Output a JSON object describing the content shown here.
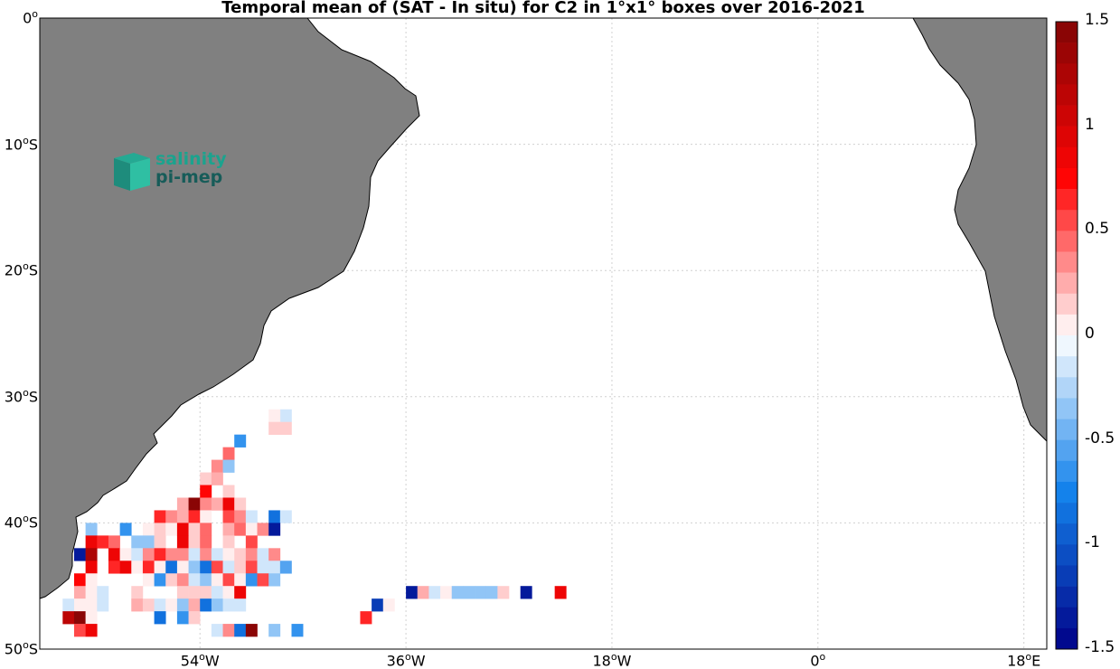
{
  "title": "Temporal mean of (SAT - In situ) for C2 in 1°x1° boxes over 2016-2021",
  "lat_ticks": [
    {
      "label": "0",
      "lat": 0
    },
    {
      "label": "10",
      "lat": -10
    },
    {
      "label": "20",
      "lat": -20
    },
    {
      "label": "30",
      "lat": -30
    },
    {
      "label": "40",
      "lat": -40
    },
    {
      "label": "50",
      "lat": -50
    }
  ],
  "lat_suffix": "S",
  "lon_ticks": [
    {
      "label": "54",
      "suffix": "W",
      "lon": -54
    },
    {
      "label": "36",
      "suffix": "W",
      "lon": -36
    },
    {
      "label": "18",
      "suffix": "W",
      "lon": -18
    },
    {
      "label": "0",
      "suffix": "",
      "lon": 0
    },
    {
      "label": "18",
      "suffix": "E",
      "lon": 18
    }
  ],
  "degree_symbol": "o",
  "logo": {
    "line1": "salinity",
    "line2": "pi-mep"
  },
  "colorbar": {
    "min": -1.5,
    "max": 1.5,
    "labels": [
      "1.5",
      "1",
      "0.5",
      "0",
      "-0.5",
      "-1",
      "-1.5"
    ],
    "label_values": [
      1.5,
      1,
      0.5,
      0,
      -0.5,
      -1,
      -1.5
    ]
  },
  "colors": {
    "land": "#808080",
    "ocean": "#ffffff",
    "grid": "#d0d0d0"
  },
  "chart_data": {
    "type": "heatmap",
    "title": "Temporal mean of (SAT - In situ) for C2 in 1°x1° boxes over 2016-2021",
    "lon_range": [
      -68,
      20
    ],
    "lat_range": [
      -50,
      0
    ],
    "cell_size_deg": 1,
    "cells": [
      {
        "lon": -47,
        "lat": -32,
        "v": -0.1
      },
      {
        "lon": -48,
        "lat": -32,
        "v": 0.05
      },
      {
        "lon": -48,
        "lat": -33,
        "v": 0.1
      },
      {
        "lon": -47,
        "lat": -33,
        "v": 0.1
      },
      {
        "lon": -51,
        "lat": -34,
        "v": -0.7
      },
      {
        "lon": -52,
        "lat": -35,
        "v": 0.4
      },
      {
        "lon": -53,
        "lat": -36,
        "v": 0.3
      },
      {
        "lon": -52,
        "lat": -36,
        "v": -0.3
      },
      {
        "lon": -54,
        "lat": -37,
        "v": 0.15
      },
      {
        "lon": -53,
        "lat": -37,
        "v": 0.2
      },
      {
        "lon": -54,
        "lat": -38,
        "v": 0.7
      },
      {
        "lon": -52,
        "lat": -38,
        "v": 0.1
      },
      {
        "lon": -56,
        "lat": -39,
        "v": 0.2
      },
      {
        "lon": -55,
        "lat": -39,
        "v": 1.5
      },
      {
        "lon": -54,
        "lat": -39,
        "v": 0.3
      },
      {
        "lon": -53,
        "lat": -39,
        "v": 0.2
      },
      {
        "lon": -52,
        "lat": -39,
        "v": 0.8
      },
      {
        "lon": -51,
        "lat": -39,
        "v": 0.1
      },
      {
        "lon": -58,
        "lat": -40,
        "v": 0.6
      },
      {
        "lon": -57,
        "lat": -40,
        "v": 0.3
      },
      {
        "lon": -56,
        "lat": -40,
        "v": 0.2
      },
      {
        "lon": -55,
        "lat": -40,
        "v": 0.6
      },
      {
        "lon": -54,
        "lat": -40,
        "v": 0.05
      },
      {
        "lon": -52,
        "lat": -40,
        "v": 0.5
      },
      {
        "lon": -51,
        "lat": -40,
        "v": 0.3
      },
      {
        "lon": -50,
        "lat": -40,
        "v": -0.15
      },
      {
        "lon": -48,
        "lat": -40,
        "v": -0.8
      },
      {
        "lon": -47,
        "lat": -40,
        "v": -0.2
      },
      {
        "lon": -64,
        "lat": -41,
        "v": -0.4
      },
      {
        "lon": -61,
        "lat": -41,
        "v": -0.7
      },
      {
        "lon": -59,
        "lat": -41,
        "v": 0.05
      },
      {
        "lon": -58,
        "lat": -41,
        "v": 0.1
      },
      {
        "lon": -57,
        "lat": -41,
        "v": 0.05
      },
      {
        "lon": -56,
        "lat": -41,
        "v": 0.8
      },
      {
        "lon": -55,
        "lat": -41,
        "v": 0.1
      },
      {
        "lon": -54,
        "lat": -41,
        "v": 0.4
      },
      {
        "lon": -52,
        "lat": -41,
        "v": 0.2
      },
      {
        "lon": -51,
        "lat": -41,
        "v": 0.4
      },
      {
        "lon": -50,
        "lat": -41,
        "v": 0.05
      },
      {
        "lon": -49,
        "lat": -41,
        "v": 0.3
      },
      {
        "lon": -48,
        "lat": -41,
        "v": -1.4
      },
      {
        "lon": -64,
        "lat": -42,
        "v": 0.8
      },
      {
        "lon": -63,
        "lat": -42,
        "v": 0.6
      },
      {
        "lon": -62,
        "lat": -42,
        "v": 0.4
      },
      {
        "lon": -60,
        "lat": -42,
        "v": -0.3
      },
      {
        "lon": -59,
        "lat": -42,
        "v": -0.3
      },
      {
        "lon": -58,
        "lat": -42,
        "v": 0.15
      },
      {
        "lon": -56,
        "lat": -42,
        "v": 0.8
      },
      {
        "lon": -55,
        "lat": -42,
        "v": 0.1
      },
      {
        "lon": -54,
        "lat": -42,
        "v": 0.4
      },
      {
        "lon": -52,
        "lat": -42,
        "v": 0.1
      },
      {
        "lon": -50,
        "lat": -42,
        "v": 0.5
      },
      {
        "lon": -65,
        "lat": -43,
        "v": -1.4
      },
      {
        "lon": -64,
        "lat": -43,
        "v": 1.3
      },
      {
        "lon": -62,
        "lat": -43,
        "v": 0.8
      },
      {
        "lon": -61,
        "lat": -43,
        "v": 0.05
      },
      {
        "lon": -60,
        "lat": -43,
        "v": -0.1
      },
      {
        "lon": -59,
        "lat": -43,
        "v": 0.3
      },
      {
        "lon": -58,
        "lat": -43,
        "v": 0.6
      },
      {
        "lon": -57,
        "lat": -43,
        "v": 0.3
      },
      {
        "lon": -56,
        "lat": -43,
        "v": 0.3
      },
      {
        "lon": -55,
        "lat": -43,
        "v": -0.2
      },
      {
        "lon": -54,
        "lat": -43,
        "v": 0.3
      },
      {
        "lon": -53,
        "lat": -43,
        "v": -0.2
      },
      {
        "lon": -52,
        "lat": -43,
        "v": 0.05
      },
      {
        "lon": -51,
        "lat": -43,
        "v": 0.15
      },
      {
        "lon": -50,
        "lat": -43,
        "v": 0.3
      },
      {
        "lon": -49,
        "lat": -43,
        "v": -0.1
      },
      {
        "lon": -48,
        "lat": -43,
        "v": 0.3
      },
      {
        "lon": -64,
        "lat": -44,
        "v": 0.8
      },
      {
        "lon": -62,
        "lat": -44,
        "v": 0.6
      },
      {
        "lon": -61,
        "lat": -44,
        "v": 0.8
      },
      {
        "lon": -60,
        "lat": -44,
        "v": 0.05
      },
      {
        "lon": -59,
        "lat": -44,
        "v": 0.6
      },
      {
        "lon": -58,
        "lat": -44,
        "v": 0.05
      },
      {
        "lon": -57,
        "lat": -44,
        "v": -0.8
      },
      {
        "lon": -56,
        "lat": -44,
        "v": 0.05
      },
      {
        "lon": -55,
        "lat": -44,
        "v": -0.3
      },
      {
        "lon": -54,
        "lat": -44,
        "v": -0.8
      },
      {
        "lon": -53,
        "lat": -44,
        "v": 0.5
      },
      {
        "lon": -52,
        "lat": -44,
        "v": -0.1
      },
      {
        "lon": -51,
        "lat": -44,
        "v": 0.1
      },
      {
        "lon": -50,
        "lat": -44,
        "v": 0.5
      },
      {
        "lon": -49,
        "lat": -44,
        "v": -0.2
      },
      {
        "lon": -48,
        "lat": -44,
        "v": -0.1
      },
      {
        "lon": -47,
        "lat": -44,
        "v": -0.6
      },
      {
        "lon": -65,
        "lat": -45,
        "v": 0.7
      },
      {
        "lon": -64,
        "lat": -45,
        "v": 0.05
      },
      {
        "lon": -59,
        "lat": -45,
        "v": 0.05
      },
      {
        "lon": -58,
        "lat": -45,
        "v": -0.7
      },
      {
        "lon": -57,
        "lat": -45,
        "v": 0.1
      },
      {
        "lon": -56,
        "lat": -45,
        "v": 0.3
      },
      {
        "lon": -55,
        "lat": -45,
        "v": -0.1
      },
      {
        "lon": -54,
        "lat": -45,
        "v": -0.3
      },
      {
        "lon": -53,
        "lat": -45,
        "v": 0.05
      },
      {
        "lon": -52,
        "lat": -45,
        "v": 0.5
      },
      {
        "lon": -51,
        "lat": -45,
        "v": 0.05
      },
      {
        "lon": -50,
        "lat": -45,
        "v": -0.7
      },
      {
        "lon": -49,
        "lat": -45,
        "v": 0.5
      },
      {
        "lon": -48,
        "lat": -45,
        "v": -0.3
      },
      {
        "lon": -65,
        "lat": -46,
        "v": 0.2
      },
      {
        "lon": -64,
        "lat": -46,
        "v": 0.05
      },
      {
        "lon": -63,
        "lat": -46,
        "v": -0.1
      },
      {
        "lon": -60,
        "lat": -46,
        "v": 0.15
      },
      {
        "lon": -56,
        "lat": -46,
        "v": 0.15
      },
      {
        "lon": -55,
        "lat": -46,
        "v": 0.15
      },
      {
        "lon": -54,
        "lat": -46,
        "v": 0.1
      },
      {
        "lon": -53,
        "lat": -46,
        "v": -0.1
      },
      {
        "lon": -52,
        "lat": -46,
        "v": 0.05
      },
      {
        "lon": -51,
        "lat": -46,
        "v": 0.8
      },
      {
        "lon": -36,
        "lat": -46,
        "v": -1.3
      },
      {
        "lon": -35,
        "lat": -46,
        "v": 0.2
      },
      {
        "lon": -34,
        "lat": -46,
        "v": -0.2
      },
      {
        "lon": -33,
        "lat": -46,
        "v": 0.05
      },
      {
        "lon": -32,
        "lat": -46,
        "v": -0.4
      },
      {
        "lon": -31,
        "lat": -46,
        "v": -0.4
      },
      {
        "lon": -30,
        "lat": -46,
        "v": -0.4
      },
      {
        "lon": -29,
        "lat": -46,
        "v": -0.4
      },
      {
        "lon": -28,
        "lat": -46,
        "v": 0.1
      },
      {
        "lon": -26,
        "lat": -46,
        "v": -1.3
      },
      {
        "lon": -23,
        "lat": -46,
        "v": 0.8
      },
      {
        "lon": -66,
        "lat": -47,
        "v": -0.1
      },
      {
        "lon": -65,
        "lat": -47,
        "v": 0.05
      },
      {
        "lon": -64,
        "lat": -47,
        "v": 0.05
      },
      {
        "lon": -63,
        "lat": -47,
        "v": -0.2
      },
      {
        "lon": -60,
        "lat": -47,
        "v": 0.2
      },
      {
        "lon": -59,
        "lat": -47,
        "v": 0.1
      },
      {
        "lon": -58,
        "lat": -47,
        "v": -0.2
      },
      {
        "lon": -57,
        "lat": -47,
        "v": 0.05
      },
      {
        "lon": -56,
        "lat": -47,
        "v": -0.4
      },
      {
        "lon": -55,
        "lat": -47,
        "v": 0.2
      },
      {
        "lon": -54,
        "lat": -47,
        "v": -0.8
      },
      {
        "lon": -53,
        "lat": -47,
        "v": -0.3
      },
      {
        "lon": -52,
        "lat": -47,
        "v": -0.1
      },
      {
        "lon": -51,
        "lat": -47,
        "v": -0.1
      },
      {
        "lon": -39,
        "lat": -47,
        "v": -1.2
      },
      {
        "lon": -38,
        "lat": -47,
        "v": 0.05
      },
      {
        "lon": -66,
        "lat": -48,
        "v": 1.1
      },
      {
        "lon": -65,
        "lat": -48,
        "v": 1.4
      },
      {
        "lon": -64,
        "lat": -48,
        "v": 0.05
      },
      {
        "lon": -58,
        "lat": -48,
        "v": -0.8
      },
      {
        "lon": -56,
        "lat": -48,
        "v": -0.7
      },
      {
        "lon": -55,
        "lat": -48,
        "v": 0.1
      },
      {
        "lon": -40,
        "lat": -48,
        "v": 0.6
      },
      {
        "lon": -65,
        "lat": -49,
        "v": 0.5
      },
      {
        "lon": -64,
        "lat": -49,
        "v": 0.8
      },
      {
        "lon": -53,
        "lat": -49,
        "v": -0.2
      },
      {
        "lon": -52,
        "lat": -49,
        "v": 0.3
      },
      {
        "lon": -51,
        "lat": -49,
        "v": -0.8
      },
      {
        "lon": -50,
        "lat": -49,
        "v": 1.4
      },
      {
        "lon": -48,
        "lat": -49,
        "v": -0.3
      },
      {
        "lon": -46,
        "lat": -49,
        "v": -0.7
      }
    ]
  }
}
